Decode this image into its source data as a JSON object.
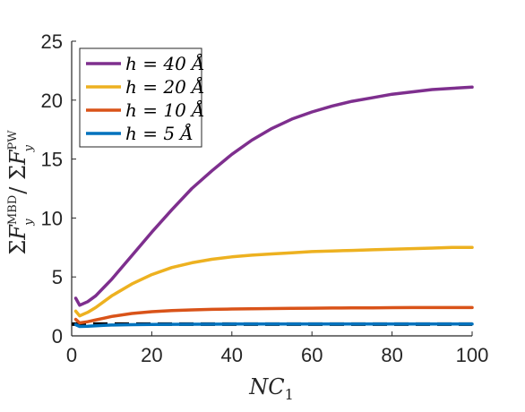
{
  "chart_data": {
    "type": "line",
    "xlabel": "NC₁",
    "ylabel": "ΣFᵧᴹᴮᴰ / ΣFᵧᴾᵂ",
    "xlim": [
      0,
      100
    ],
    "ylim": [
      0,
      25
    ],
    "xticks": [
      0,
      20,
      40,
      60,
      80,
      100
    ],
    "yticks": [
      0,
      5,
      10,
      15,
      20,
      25
    ],
    "grid": false,
    "legend_position": "top-left",
    "reference_line": {
      "y": 1,
      "color": "#000000",
      "style": "dashed"
    },
    "series": [
      {
        "name": "h = 40 Å",
        "color": "#7E2F8E",
        "x": [
          1,
          2,
          4,
          6,
          8,
          10,
          15,
          20,
          25,
          30,
          35,
          40,
          45,
          50,
          55,
          60,
          65,
          70,
          75,
          80,
          85,
          90,
          95,
          100
        ],
        "y": [
          3.2,
          2.6,
          2.9,
          3.4,
          4.1,
          4.8,
          6.8,
          8.8,
          10.7,
          12.5,
          14.0,
          15.4,
          16.6,
          17.6,
          18.4,
          19.0,
          19.5,
          19.9,
          20.2,
          20.5,
          20.7,
          20.9,
          21.0,
          21.1
        ]
      },
      {
        "name": "h = 20 Å",
        "color": "#EDB120",
        "x": [
          1,
          2,
          4,
          6,
          8,
          10,
          15,
          20,
          25,
          30,
          35,
          40,
          45,
          50,
          55,
          60,
          65,
          70,
          75,
          80,
          85,
          90,
          95,
          100
        ],
        "y": [
          2.1,
          1.7,
          2.0,
          2.4,
          2.9,
          3.4,
          4.4,
          5.2,
          5.8,
          6.2,
          6.5,
          6.7,
          6.85,
          6.95,
          7.05,
          7.15,
          7.2,
          7.25,
          7.3,
          7.35,
          7.4,
          7.45,
          7.5,
          7.5
        ]
      },
      {
        "name": "h = 10 Å",
        "color": "#D95319",
        "x": [
          1,
          2,
          4,
          6,
          8,
          10,
          15,
          20,
          25,
          30,
          35,
          40,
          45,
          50,
          55,
          60,
          65,
          70,
          75,
          80,
          85,
          90,
          95,
          100
        ],
        "y": [
          1.4,
          1.1,
          1.2,
          1.35,
          1.5,
          1.65,
          1.9,
          2.05,
          2.15,
          2.2,
          2.25,
          2.28,
          2.3,
          2.32,
          2.34,
          2.35,
          2.36,
          2.37,
          2.38,
          2.39,
          2.4,
          2.4,
          2.4,
          2.4
        ]
      },
      {
        "name": "h = 5 Å",
        "color": "#0072BD",
        "x": [
          1,
          2,
          4,
          6,
          8,
          10,
          15,
          20,
          25,
          30,
          40,
          50,
          60,
          70,
          80,
          90,
          100
        ],
        "y": [
          0.95,
          0.8,
          0.82,
          0.86,
          0.89,
          0.92,
          0.95,
          0.97,
          0.98,
          0.99,
          1.0,
          1.0,
          1.0,
          1.0,
          1.0,
          1.0,
          1.0
        ]
      }
    ]
  }
}
